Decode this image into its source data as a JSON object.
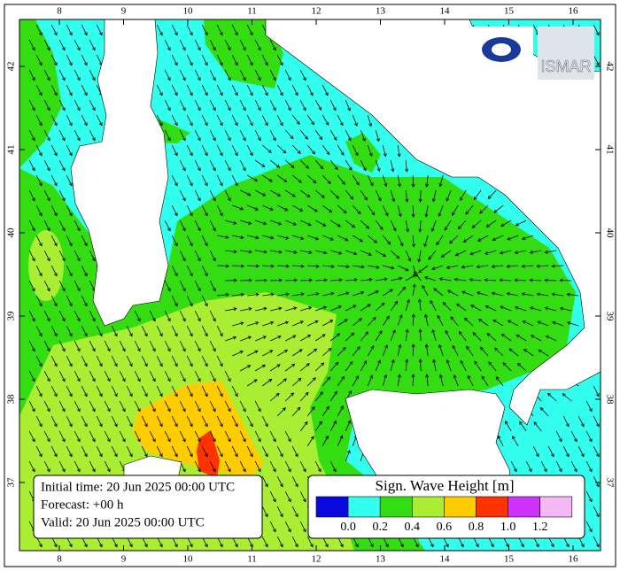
{
  "map": {
    "lon_ticks": [
      8,
      9,
      10,
      11,
      12,
      13,
      14,
      15,
      16
    ],
    "lat_ticks": [
      37,
      38,
      39,
      40,
      41,
      42
    ],
    "logo": "ISMAR"
  },
  "info": {
    "initial": "Initial time: 20 Jun 2025 00:00 UTC",
    "forecast": "Forecast: +00 h",
    "valid": "Valid: 20 Jun 2025 00:00 UTC"
  },
  "colorbar": {
    "title": "Sign. Wave Height [m]",
    "colors": [
      "#0a0ae0",
      "#33ffee",
      "#33dd11",
      "#aaee33",
      "#ffcc00",
      "#ff3300",
      "#cc33ff",
      "#f4b8f4"
    ],
    "ticks": [
      {
        "value": 0,
        "label": "0.0"
      },
      0.2,
      0.4,
      0.6,
      0.8,
      {
        "value": 1,
        "label": "1.0"
      },
      1.2
    ]
  }
}
